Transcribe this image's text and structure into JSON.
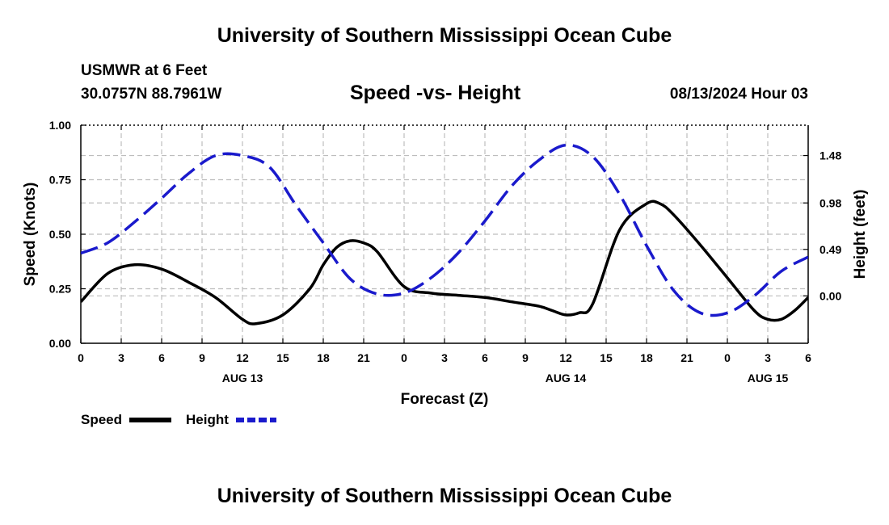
{
  "page": {
    "title": "University of Southern Mississippi Ocean Cube",
    "station": "USMWR at 6 Feet",
    "coords": "30.0757N  88.7961W",
    "chart_title": "Speed -vs- Height",
    "datetime": "08/13/2024 Hour 03",
    "footer_title": "University of Southern Mississippi Ocean Cube"
  },
  "chart_data": {
    "type": "line",
    "title": "Speed -vs- Height",
    "xlabel": "Forecast (Z)",
    "ylabel": "Speed (Knots)",
    "y2label": "Height (feet)",
    "x_ticks": [
      "0",
      "3",
      "6",
      "9",
      "12",
      "15",
      "18",
      "21",
      "0",
      "3",
      "6",
      "9",
      "12",
      "15",
      "18",
      "21",
      "0",
      "3",
      "6"
    ],
    "day_labels": [
      {
        "label": "AUG 13",
        "hour_index": 12
      },
      {
        "label": "AUG 14",
        "hour_index": 36
      },
      {
        "label": "AUG 15",
        "hour_index": 51
      }
    ],
    "xlim": [
      0,
      54
    ],
    "ylim": [
      0,
      1.0
    ],
    "y_ticks": [
      "0.00",
      "0.25",
      "0.50",
      "0.75",
      "1.00"
    ],
    "y2lim": [
      -0.5,
      1.8
    ],
    "y2_ticks": [
      {
        "label": "0.00",
        "value": 0.0
      },
      {
        "label": "0.49",
        "value": 0.49
      },
      {
        "label": "0.98",
        "value": 0.98
      },
      {
        "label": "1.48",
        "value": 1.48
      }
    ],
    "grid": true,
    "series": [
      {
        "name": "Speed",
        "axis": "left",
        "color": "#000000",
        "style": "solid",
        "x": [
          0,
          2,
          4,
          6,
          8,
          10,
          12,
          13,
          15,
          17,
          18,
          19,
          20,
          21,
          22,
          24,
          26,
          28,
          30,
          32,
          34,
          35,
          36,
          37,
          38,
          40,
          42,
          43,
          44,
          46,
          48,
          50,
          51,
          52,
          53,
          54
        ],
        "y": [
          0.19,
          0.32,
          0.36,
          0.34,
          0.28,
          0.21,
          0.11,
          0.09,
          0.13,
          0.25,
          0.36,
          0.44,
          0.47,
          0.46,
          0.42,
          0.26,
          0.23,
          0.22,
          0.21,
          0.19,
          0.17,
          0.15,
          0.13,
          0.14,
          0.18,
          0.52,
          0.64,
          0.64,
          0.59,
          0.45,
          0.3,
          0.15,
          0.11,
          0.11,
          0.15,
          0.21
        ]
      },
      {
        "name": "Height",
        "axis": "right",
        "color": "#1a1acc",
        "style": "dashed",
        "x": [
          0,
          2,
          4,
          6,
          8,
          10,
          12,
          14,
          16,
          18,
          20,
          22,
          24,
          26,
          28,
          30,
          32,
          34,
          36,
          38,
          40,
          42,
          44,
          46,
          48,
          50,
          52,
          54
        ],
        "y": [
          0.45,
          0.56,
          0.78,
          1.03,
          1.29,
          1.48,
          1.48,
          1.36,
          0.95,
          0.56,
          0.18,
          0.02,
          0.03,
          0.19,
          0.45,
          0.79,
          1.16,
          1.43,
          1.59,
          1.47,
          1.07,
          0.53,
          0.06,
          -0.18,
          -0.18,
          0.0,
          0.26,
          0.41
        ]
      }
    ],
    "legend": [
      {
        "label": "Speed",
        "color": "#000000",
        "style": "solid"
      },
      {
        "label": "Height",
        "color": "#1a1acc",
        "style": "dashed"
      }
    ]
  }
}
